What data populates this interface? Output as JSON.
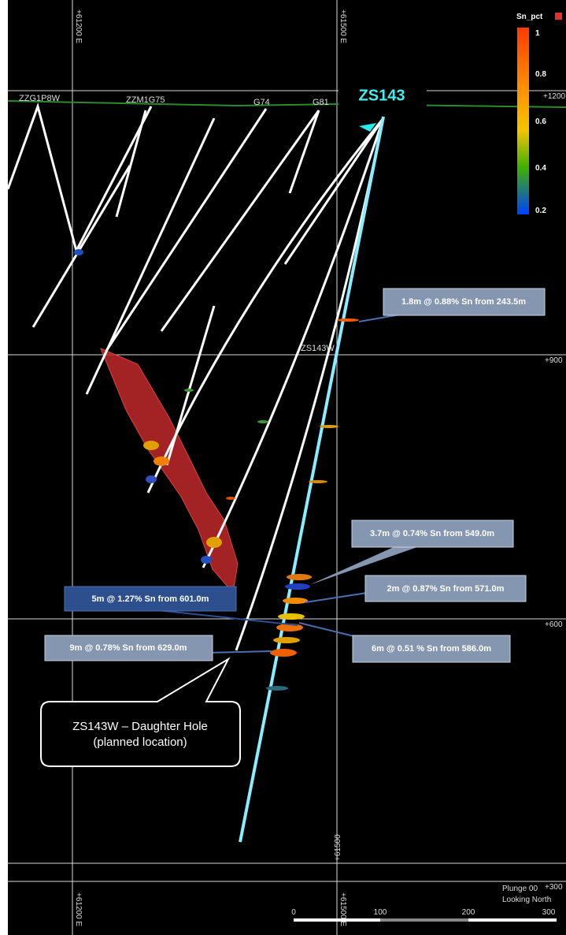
{
  "main_hole": "ZS143",
  "hole_labels": [
    "ZZG1P8W",
    "ZZM1G75",
    "G74",
    "G81",
    "ZS143W"
  ],
  "grid_labels": {
    "east_left": "+61200 E",
    "east_right": "+61500 E",
    "east_mid": "+61500",
    "rl_1200": "+1200",
    "rl_900": "+900",
    "rl_600": "+600",
    "rl_300": "+300"
  },
  "legend": {
    "title": "Sn_pct",
    "ticks": [
      "1",
      "0.8",
      "0.6",
      "0.4",
      "0.2"
    ]
  },
  "callouts": [
    "1.8m @ 0.88% Sn from 243.5m",
    "3.7m @ 0.74% Sn from 549.0m",
    "2m @ 0.87% Sn from 571.0m",
    "5m @ 1.27% Sn from 601.0m",
    "6m @ 0.51 % Sn from 586.0m",
    "9m @ 0.78% Sn from 629.0m"
  ],
  "note": {
    "line1": "ZS143W – Daughter Hole",
    "line2": "(planned location)"
  },
  "view": {
    "plunge": "Plunge 00",
    "direction": "Looking North"
  },
  "scale": [
    "0",
    "100",
    "200",
    "300"
  ]
}
